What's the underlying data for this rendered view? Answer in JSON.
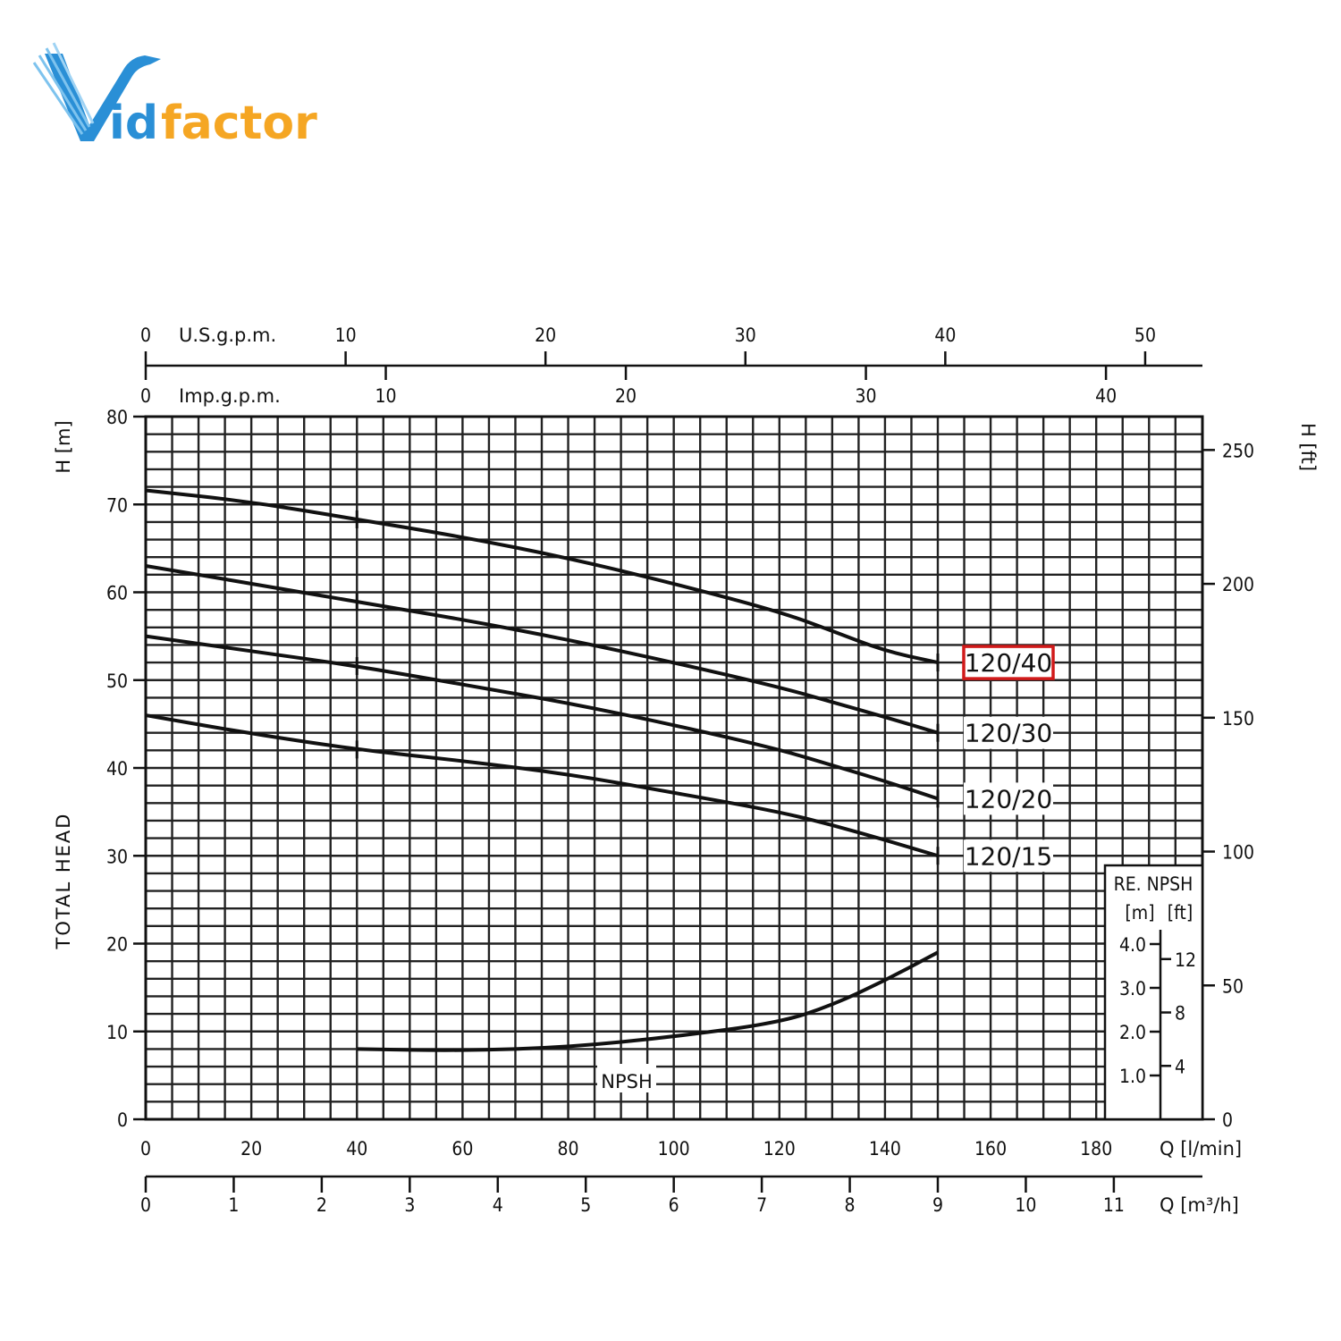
{
  "logo": {
    "text_v": "V",
    "text_id": "id",
    "text_factor": "factor",
    "colors": {
      "blue": "#2a8fd6",
      "orange": "#f5a623"
    }
  },
  "chart_data": {
    "type": "line",
    "x_label": "Q [l/min]",
    "x_ticks": [
      "0",
      "20",
      "40",
      "60",
      "80",
      "100",
      "120",
      "140",
      "160",
      "180"
    ],
    "x_m3h_label": "Q [m³/h]",
    "x_m3h_ticks": [
      "0",
      "1",
      "2",
      "3",
      "4",
      "5",
      "6",
      "7",
      "8",
      "9",
      "10",
      "11"
    ],
    "top_usgpm_label": "U.S.g.p.m.",
    "top_usgpm_ticks": [
      "0",
      "10",
      "20",
      "30",
      "40",
      "50"
    ],
    "top_impgpm_label": "Imp.g.p.m.",
    "top_impgpm_ticks": [
      "0",
      "10",
      "20",
      "30",
      "40"
    ],
    "y_label_unit": "H [m]",
    "y_label": "TOTAL HEAD",
    "y_ticks": [
      "0",
      "10",
      "20",
      "30",
      "40",
      "50",
      "60",
      "70",
      "80"
    ],
    "y_right_label": "H [ft]",
    "y_right_ticks": [
      "0",
      "50",
      "100",
      "150",
      "200",
      "250"
    ],
    "xlim": [
      0,
      200
    ],
    "ylim": [
      0,
      80
    ],
    "grid": true,
    "series": [
      {
        "name": "120/40",
        "highlighted": true,
        "x": [
          0,
          20,
          40,
          60,
          80,
          100,
          120,
          130,
          140,
          150
        ],
        "y": [
          71.6,
          70.3,
          68.3,
          66.3,
          63.9,
          61.0,
          57.8,
          55.6,
          53.3,
          52.0
        ]
      },
      {
        "name": "120/30",
        "x": [
          0,
          20,
          40,
          60,
          80,
          100,
          120,
          130,
          140,
          150
        ],
        "y": [
          63.0,
          61.0,
          58.9,
          56.9,
          54.6,
          52.0,
          49.2,
          47.5,
          45.8,
          44.0
        ]
      },
      {
        "name": "120/20",
        "x": [
          0,
          20,
          40,
          60,
          80,
          100,
          120,
          130,
          140,
          150
        ],
        "y": [
          55.0,
          53.3,
          51.6,
          49.5,
          47.4,
          44.9,
          42.1,
          40.3,
          38.5,
          36.5
        ]
      },
      {
        "name": "120/15",
        "x": [
          0,
          20,
          40,
          60,
          80,
          100,
          120,
          130,
          140,
          150
        ],
        "y": [
          46.0,
          43.9,
          42.1,
          40.8,
          39.3,
          37.2,
          35.0,
          33.5,
          31.8,
          30.0
        ]
      },
      {
        "name": "NPSH",
        "x": [
          40,
          60,
          80,
          100,
          120,
          130,
          140,
          150
        ],
        "y": [
          8.0,
          7.8,
          8.2,
          9.4,
          11.0,
          13.0,
          15.8,
          19.0
        ]
      }
    ],
    "npsh_inset": {
      "title": "RE. NPSH",
      "unit_m": "[m]",
      "unit_ft": "[ft]",
      "m_ticks": [
        "1.0",
        "2.0",
        "3.0",
        "4.0"
      ],
      "ft_ticks": [
        "4",
        "8",
        "12"
      ]
    }
  }
}
